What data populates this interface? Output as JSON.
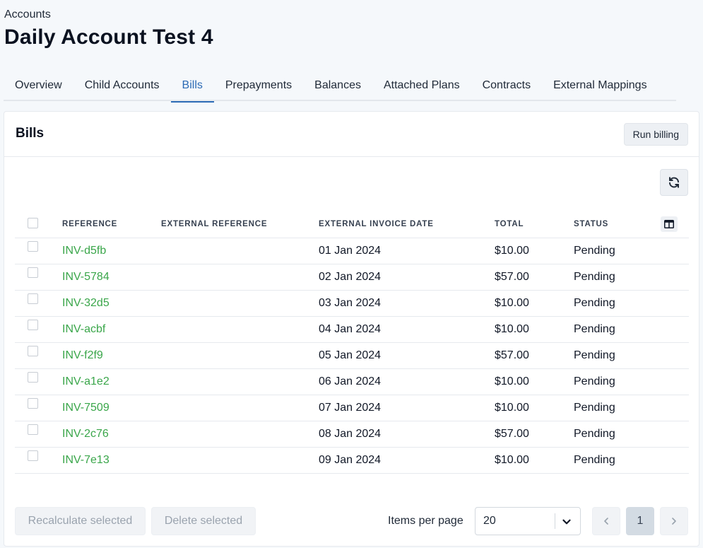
{
  "breadcrumb": "Accounts",
  "page_title": "Daily Account Test 4",
  "tabs": [
    {
      "label": "Overview",
      "active": false
    },
    {
      "label": "Child Accounts",
      "active": false
    },
    {
      "label": "Bills",
      "active": true
    },
    {
      "label": "Prepayments",
      "active": false
    },
    {
      "label": "Balances",
      "active": false
    },
    {
      "label": "Attached Plans",
      "active": false
    },
    {
      "label": "Contracts",
      "active": false
    },
    {
      "label": "External Mappings",
      "active": false
    }
  ],
  "card": {
    "title": "Bills",
    "run_billing_label": "Run billing",
    "refresh_icon": "refresh-icon",
    "columns_icon": "columns-icon"
  },
  "table": {
    "headers": {
      "reference": "REFERENCE",
      "external_reference": "EXTERNAL REFERENCE",
      "external_invoice_date": "EXTERNAL INVOICE DATE",
      "total": "TOTAL",
      "status": "STATUS"
    },
    "rows": [
      {
        "reference": "INV-d5fb",
        "external_reference": "",
        "date": "01 Jan 2024",
        "total": "$10.00",
        "status": "Pending"
      },
      {
        "reference": "INV-5784",
        "external_reference": "",
        "date": "02 Jan 2024",
        "total": "$57.00",
        "status": "Pending"
      },
      {
        "reference": "INV-32d5",
        "external_reference": "",
        "date": "03 Jan 2024",
        "total": "$10.00",
        "status": "Pending"
      },
      {
        "reference": "INV-acbf",
        "external_reference": "",
        "date": "04 Jan 2024",
        "total": "$10.00",
        "status": "Pending"
      },
      {
        "reference": "INV-f2f9",
        "external_reference": "",
        "date": "05 Jan 2024",
        "total": "$57.00",
        "status": "Pending"
      },
      {
        "reference": "INV-a1e2",
        "external_reference": "",
        "date": "06 Jan 2024",
        "total": "$10.00",
        "status": "Pending"
      },
      {
        "reference": "INV-7509",
        "external_reference": "",
        "date": "07 Jan 2024",
        "total": "$10.00",
        "status": "Pending"
      },
      {
        "reference": "INV-2c76",
        "external_reference": "",
        "date": "08 Jan 2024",
        "total": "$57.00",
        "status": "Pending"
      },
      {
        "reference": "INV-7e13",
        "external_reference": "",
        "date": "09 Jan 2024",
        "total": "$10.00",
        "status": "Pending"
      }
    ]
  },
  "footer": {
    "recalculate_label": "Recalculate selected",
    "delete_label": "Delete selected",
    "items_per_page_label": "Items per page",
    "items_per_page_value": "20",
    "current_page": "1"
  },
  "colors": {
    "accent": "#2c6bb5",
    "link_green": "#3aa64a",
    "page_bg": "#f5f8fb"
  }
}
